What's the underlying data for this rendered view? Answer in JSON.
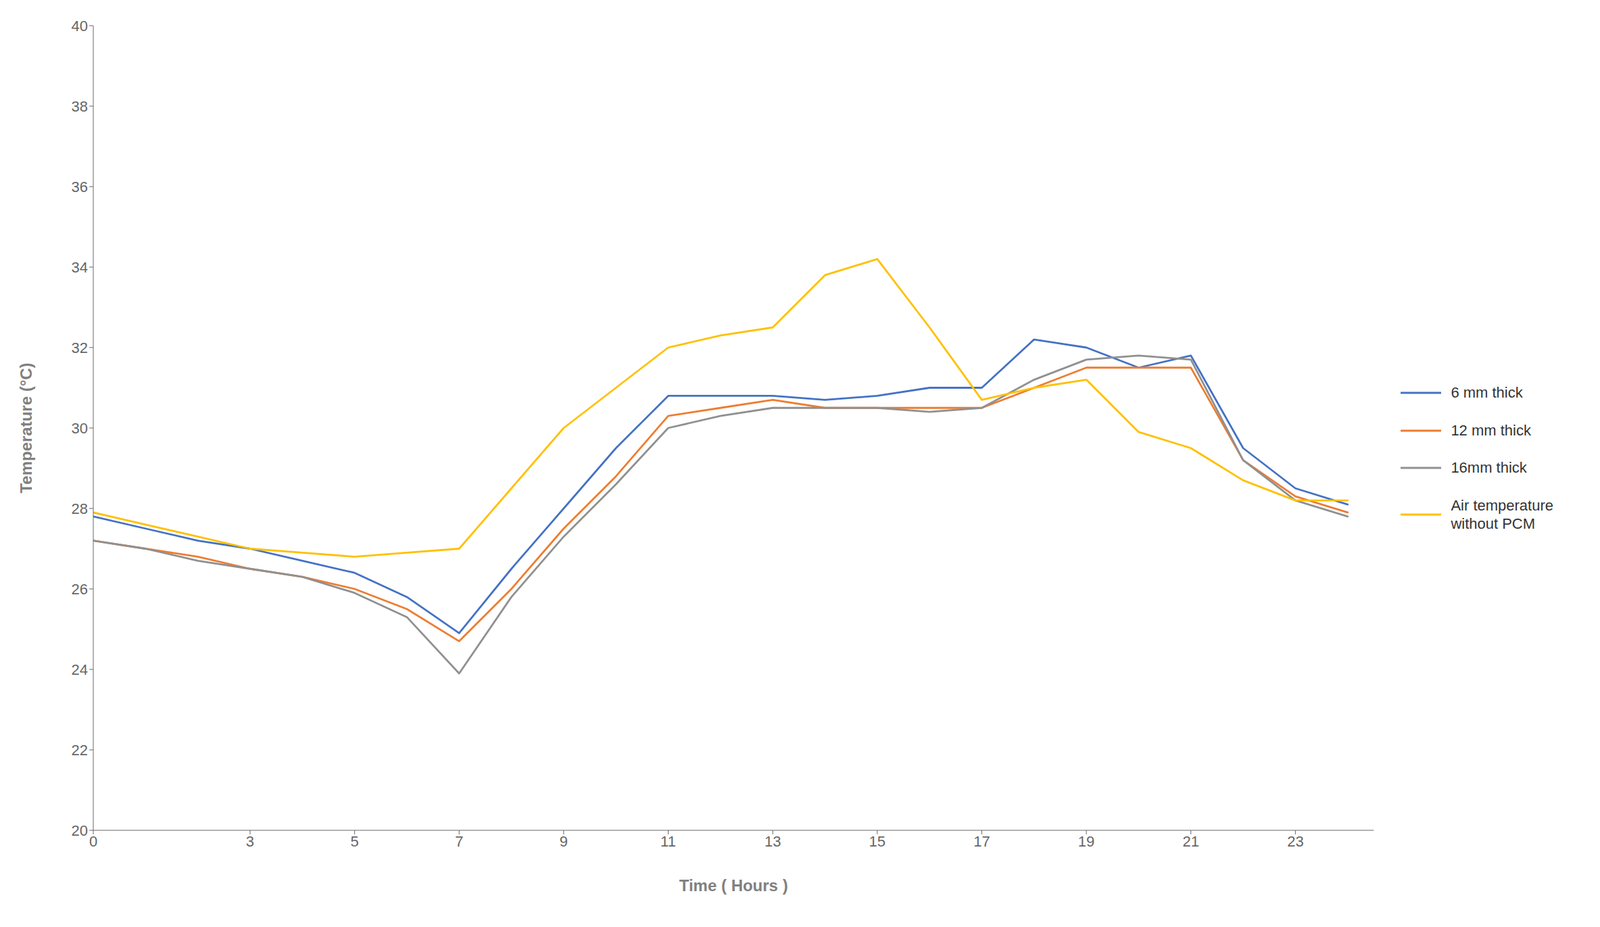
{
  "chart_data": {
    "type": "line",
    "x_label": "Time ( Hours )",
    "y_label": "Temperature (°C)",
    "x": [
      0,
      1,
      2,
      3,
      4,
      5,
      6,
      7,
      8,
      9,
      10,
      11,
      12,
      13,
      14,
      15,
      16,
      17,
      18,
      19,
      20,
      21,
      22,
      23,
      24
    ],
    "series": [
      {
        "name": "6 mm thick",
        "color": "#4472C4",
        "values": [
          27.8,
          27.5,
          27.2,
          27.0,
          26.7,
          26.4,
          25.8,
          24.9,
          26.5,
          28.0,
          29.5,
          30.8,
          30.8,
          30.8,
          30.7,
          30.8,
          31.0,
          31.0,
          32.2,
          32.0,
          31.5,
          31.8,
          29.5,
          28.5,
          28.1
        ]
      },
      {
        "name": "12 mm thick",
        "color": "#ED7D31",
        "values": [
          27.2,
          27.0,
          26.8,
          26.5,
          26.3,
          26.0,
          25.5,
          24.7,
          26.0,
          27.5,
          28.8,
          30.3,
          30.5,
          30.7,
          30.5,
          30.5,
          30.5,
          30.5,
          31.0,
          31.5,
          31.5,
          31.5,
          29.2,
          28.3,
          27.9
        ]
      },
      {
        "name": "16mm thick",
        "color": "#909090",
        "values": [
          27.2,
          27.0,
          26.7,
          26.5,
          26.3,
          25.9,
          25.3,
          23.9,
          25.8,
          27.3,
          28.6,
          30.0,
          30.3,
          30.5,
          30.5,
          30.5,
          30.4,
          30.5,
          31.2,
          31.7,
          31.8,
          31.7,
          29.2,
          28.2,
          27.8
        ]
      },
      {
        "name": "Air temperature\nwithout PCM",
        "color": "#FFC000",
        "values": [
          27.9,
          27.6,
          27.3,
          27.0,
          26.9,
          26.8,
          26.9,
          27.0,
          28.5,
          30.0,
          31.0,
          32.0,
          32.3,
          32.5,
          33.8,
          34.2,
          32.5,
          30.7,
          31.0,
          31.2,
          29.9,
          29.5,
          28.7,
          28.2,
          28.2
        ]
      }
    ],
    "xlim": [
      0,
      24.5
    ],
    "xticks": [
      0,
      3,
      5,
      7,
      9,
      11,
      13,
      15,
      17,
      19,
      21,
      23
    ],
    "ylim": [
      20,
      40
    ],
    "yticks": [
      20,
      22,
      24,
      26,
      28,
      30,
      32,
      34,
      36,
      38,
      40
    ],
    "grid": false,
    "legend": "right"
  }
}
